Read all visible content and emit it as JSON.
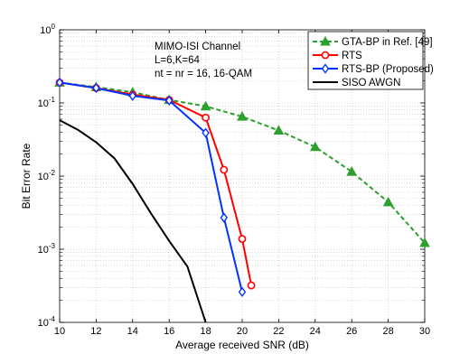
{
  "chart_data": {
    "type": "line",
    "title": "",
    "xlabel": "Average received SNR (dB)",
    "ylabel": "Bit Error Rate",
    "xlim": [
      10,
      30
    ],
    "ylim": [
      0.0001,
      1
    ],
    "yscale": "log",
    "grid": true,
    "legend_placement": "top-right",
    "annotations": [
      "MIMO-ISI Channel",
      "L=6,K=64",
      "nt = nr = 16, 16-QAM"
    ],
    "x_ticks": [
      "10",
      "12",
      "14",
      "16",
      "18",
      "20",
      "22",
      "24",
      "26",
      "28",
      "30"
    ],
    "y_ticks": [
      {
        "base": "10",
        "exp": "-4"
      },
      {
        "base": "10",
        "exp": "-3"
      },
      {
        "base": "10",
        "exp": "-2"
      },
      {
        "base": "10",
        "exp": "-1"
      },
      {
        "base": "10",
        "exp": "0"
      }
    ],
    "series": [
      {
        "name": "GTA-BP in Ref. [49]",
        "color": "#2ca02c",
        "marker": "triangle",
        "dash": true,
        "x": [
          10,
          12,
          14,
          16,
          18,
          20,
          22,
          24,
          26,
          28,
          30
        ],
        "y": [
          0.19,
          0.165,
          0.14,
          0.11,
          0.09,
          0.065,
          0.042,
          0.025,
          0.0115,
          0.0044,
          0.00122
        ]
      },
      {
        "name": "RTS",
        "color": "#ff0000",
        "marker": "circle",
        "dash": false,
        "x": [
          10,
          12,
          14,
          16,
          18,
          19,
          20,
          20.5
        ],
        "y": [
          0.19,
          0.16,
          0.13,
          0.11,
          0.063,
          0.0122,
          0.00138,
          0.00032
        ]
      },
      {
        "name": "RTS-BP (Proposed)",
        "color": "#0033ff",
        "marker": "diamond",
        "dash": false,
        "x": [
          10,
          12,
          14,
          16,
          18,
          19,
          20
        ],
        "y": [
          0.19,
          0.16,
          0.125,
          0.108,
          0.039,
          0.0027,
          0.00026
        ]
      },
      {
        "name": "SISO AWGN",
        "color": "#000000",
        "marker": "none",
        "dash": false,
        "x": [
          10,
          11,
          12,
          13,
          14,
          15,
          16,
          17,
          18
        ],
        "y": [
          0.058,
          0.043,
          0.029,
          0.0175,
          0.0078,
          0.0031,
          0.0013,
          0.00058,
          0.0001
        ]
      }
    ]
  }
}
